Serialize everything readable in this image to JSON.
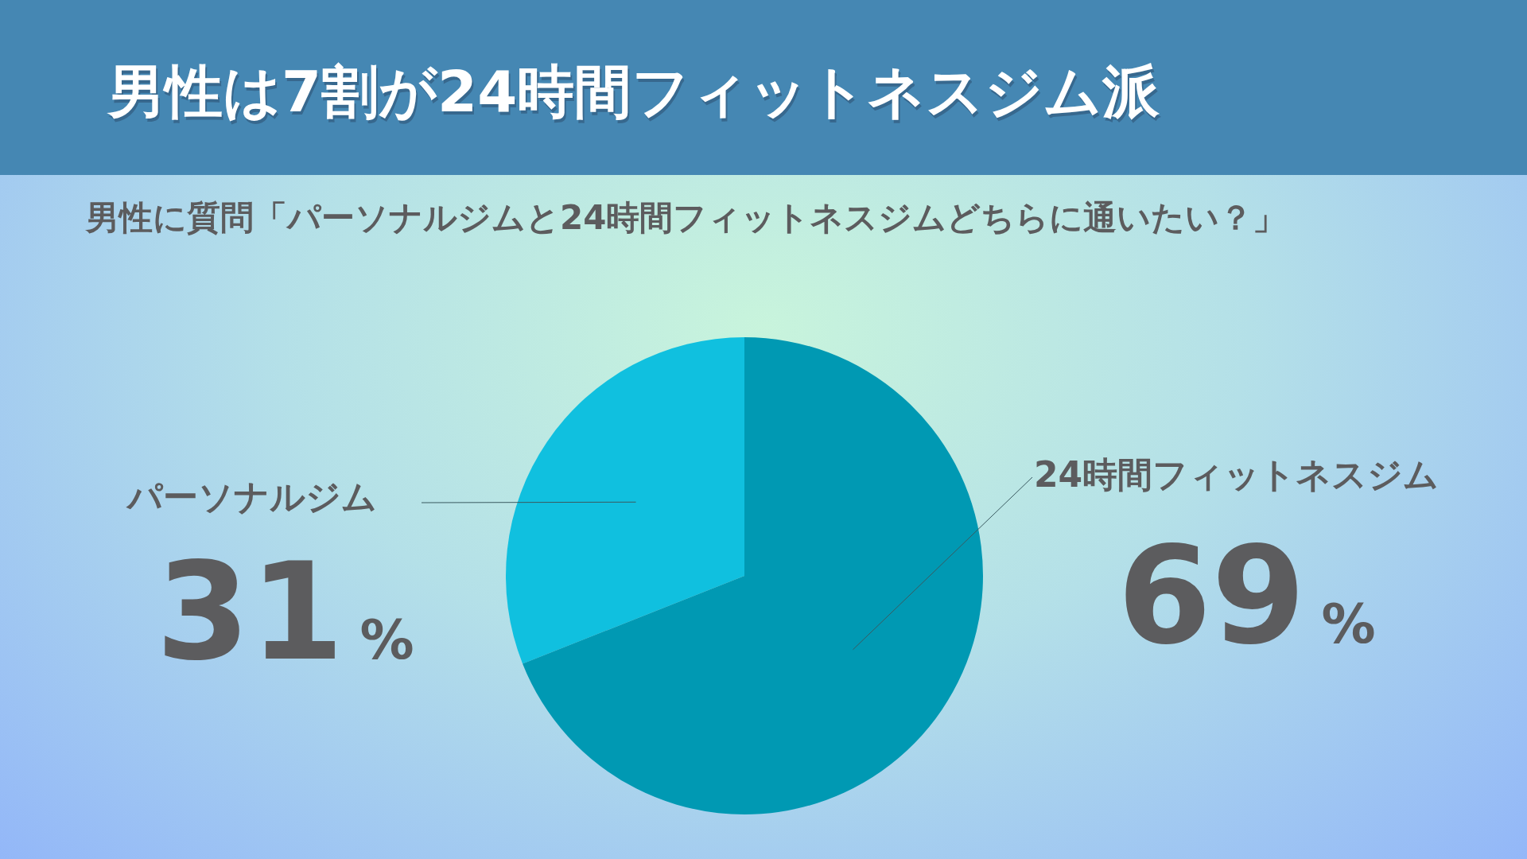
{
  "chart_data": {
    "type": "pie",
    "title": "男性は7割が24時間フィットネスジム派",
    "subtitle": "男性に質問「パーソナルジムと24時間フィットネスジムどちらに通いたい？」",
    "categories": [
      "パーソナルジム",
      "24時間フィットネスジム"
    ],
    "values": [
      31,
      69
    ],
    "colors": [
      "#10c0df",
      "#0099b3"
    ],
    "value_labels": [
      "31%",
      "69%"
    ]
  }
}
